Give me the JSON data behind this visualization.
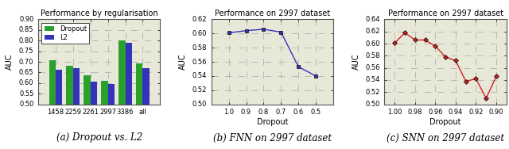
{
  "plot_a": {
    "title": "Performance by regularisation",
    "xlabel": "",
    "ylabel": "AUC",
    "categories": [
      "1458",
      "2259",
      "2261",
      "2997",
      "3386",
      "all"
    ],
    "dropout_vals": [
      0.706,
      0.683,
      0.638,
      0.612,
      0.8,
      0.693
    ],
    "l2_vals": [
      0.663,
      0.672,
      0.607,
      0.595,
      0.789,
      0.672
    ],
    "ylim": [
      0.5,
      0.9
    ],
    "yticks": [
      0.5,
      0.55,
      0.6,
      0.65,
      0.7,
      0.75,
      0.8,
      0.85,
      0.9
    ],
    "dropout_color": "#2ca02c",
    "l2_color": "#3333bb",
    "caption": "(a) Dropout vs. L2"
  },
  "plot_b": {
    "title": "Performance on 2997 dataset",
    "xlabel": "Dropout",
    "ylabel": "AUC",
    "x": [
      1.0,
      0.9,
      0.8,
      0.7,
      0.6,
      0.5
    ],
    "y": [
      0.601,
      0.604,
      0.606,
      0.602,
      0.553,
      0.54
    ],
    "xlim": [
      1.1,
      0.4
    ],
    "xticks": [
      1.0,
      0.9,
      0.8,
      0.7,
      0.6,
      0.5
    ],
    "ylim": [
      0.5,
      0.62
    ],
    "yticks": [
      0.5,
      0.52,
      0.54,
      0.56,
      0.58,
      0.6,
      0.62
    ],
    "color": "#3333bb",
    "caption": "(b) FNN on 2997 dataset"
  },
  "plot_c": {
    "title": "Performance on 2997 dataset",
    "xlabel": "Dropout",
    "ylabel": "AUC",
    "x": [
      1.0,
      0.99,
      0.98,
      0.97,
      0.96,
      0.95,
      0.94,
      0.93,
      0.92,
      0.91,
      0.9
    ],
    "y": [
      0.601,
      0.618,
      0.606,
      0.606,
      0.596,
      0.578,
      0.572,
      0.538,
      0.542,
      0.51,
      0.546
    ],
    "xlim": [
      1.01,
      0.89
    ],
    "xticks": [
      1.0,
      0.98,
      0.96,
      0.94,
      0.92,
      0.9
    ],
    "ylim": [
      0.5,
      0.64
    ],
    "yticks": [
      0.5,
      0.52,
      0.54,
      0.56,
      0.58,
      0.6,
      0.62,
      0.64
    ],
    "color": "#cc2222",
    "caption": "(c) SNN on 2997 dataset"
  },
  "bg_color": "#e8e8d8",
  "grid_color": "#b0b0b0",
  "fig_facecolor": "#f0f0f0"
}
